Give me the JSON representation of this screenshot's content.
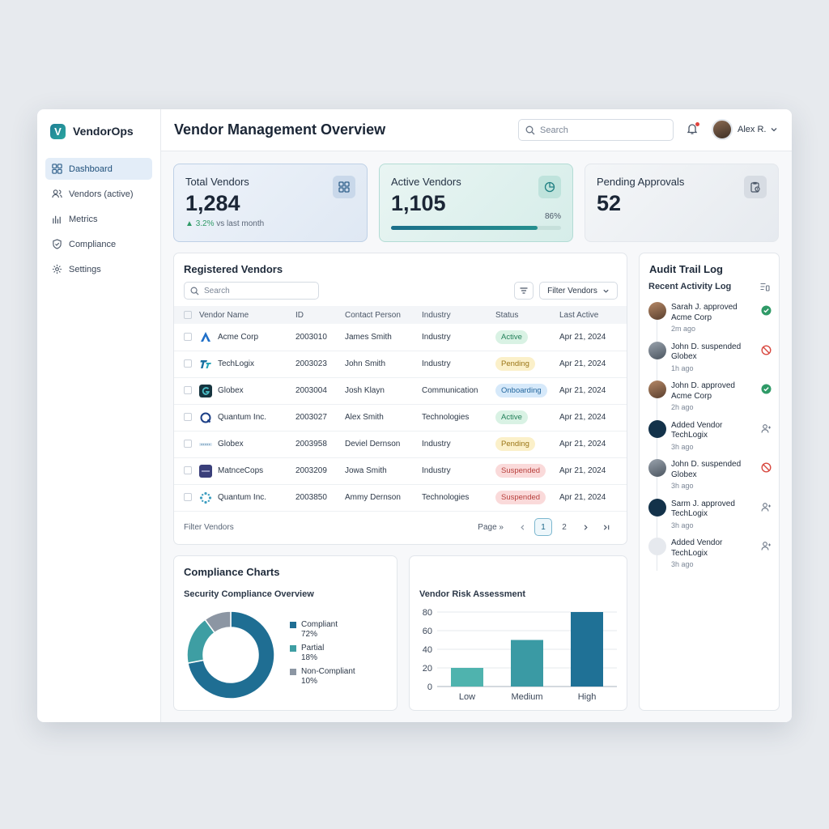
{
  "app": {
    "name": "VendorOps"
  },
  "sidebar": {
    "items": [
      {
        "label": "Dashboard",
        "icon": "dashboard-icon",
        "active": true
      },
      {
        "label": "Vendors (active)",
        "icon": "users-icon",
        "active": false
      },
      {
        "label": "Metrics",
        "icon": "bar-chart-icon",
        "active": false
      },
      {
        "label": "Compliance",
        "icon": "shield-icon",
        "active": false
      },
      {
        "label": "Settings",
        "icon": "gear-icon",
        "active": false
      }
    ]
  },
  "header": {
    "title": "Vendor Management Overview",
    "search_placeholder": "Search",
    "user_name": "Alex R."
  },
  "stats": {
    "total": {
      "label": "Total Vendors",
      "value": "1,284",
      "trend_value": "3.2%",
      "trend_text": "vs last month"
    },
    "active": {
      "label": "Active Vendors",
      "value": "1,105",
      "progress_label": "86%",
      "progress": 0.86
    },
    "pending": {
      "label": "Pending Approvals",
      "value": "52"
    }
  },
  "vendors": {
    "title": "Registered Vendors",
    "search_placeholder": "Search",
    "filter_label": "Filter Vendors",
    "columns": [
      "Vendor Name",
      "ID",
      "Contact Person",
      "Industry",
      "Status",
      "Last Active"
    ],
    "rows": [
      {
        "name": "Acme Corp",
        "id": "2003010",
        "contact": "James Smith",
        "industry": "Industry",
        "status": "Active",
        "last": "Apr 21, 2024"
      },
      {
        "name": "TechLogix",
        "id": "2003023",
        "contact": "John Smith",
        "industry": "Industry",
        "status": "Pending",
        "last": "Apr 21, 2024"
      },
      {
        "name": "Globex",
        "id": "2003004",
        "contact": "Josh Klayn",
        "industry": "Communication",
        "status": "Onboarding",
        "last": "Apr 21, 2024"
      },
      {
        "name": "Quantum Inc.",
        "id": "2003027",
        "contact": "Alex Smith",
        "industry": "Technologies",
        "status": "Active",
        "last": "Apr 21, 2024"
      },
      {
        "name": "Globex",
        "id": "2003958",
        "contact": "Deviel Dernson",
        "industry": "Industry",
        "status": "Pending",
        "last": "Apr 21, 2024"
      },
      {
        "name": "MatnceCops",
        "id": "2003209",
        "contact": "Jowa Smith",
        "industry": "Industry",
        "status": "Suspended",
        "last": "Apr 21, 2024"
      },
      {
        "name": "Quantum Inc.",
        "id": "2003850",
        "contact": "Ammy Dernson",
        "industry": "Technologies",
        "status": "Suspended",
        "last": "Apr 21, 2024"
      }
    ],
    "footer_label": "Filter Vendors",
    "pager": {
      "label": "Page",
      "current": "1",
      "next_page": "2"
    }
  },
  "audit": {
    "title": "Audit Trail Log",
    "subtitle": "Recent Activity Log",
    "items": [
      {
        "text": "Sarah J. approved Acme Corp",
        "time": "2m ago",
        "status": "approved"
      },
      {
        "text": "John D. suspended Globex",
        "time": "1h ago",
        "status": "suspended"
      },
      {
        "text": "John D. approved Acme Corp",
        "time": "2h ago",
        "status": "approved"
      },
      {
        "text": "Added Vendor TechLogix",
        "time": "3h ago",
        "status": "added"
      },
      {
        "text": "John D. suspended Globex",
        "time": "3h ago",
        "status": "suspended"
      },
      {
        "text": "Sarm J. approved TechLogix",
        "time": "3h ago",
        "status": "added"
      },
      {
        "text": "Added Vendor TechLogix",
        "time": "3h ago",
        "status": "added"
      }
    ]
  },
  "compliance": {
    "title": "Compliance Charts",
    "subtitle": "Security Compliance Overview"
  },
  "risk": {
    "title": "Vendor Risk Assessment"
  },
  "chart_data": [
    {
      "type": "pie",
      "title": "Security Compliance Overview",
      "categories": [
        "Compliant",
        "Partial",
        "Non-Compliant"
      ],
      "values": [
        72,
        18,
        10
      ],
      "value_labels": [
        "72%",
        "18%",
        "10%"
      ],
      "colors": [
        "#1f6e93",
        "#3e9ea3",
        "#8c96a3"
      ],
      "legend": "right"
    },
    {
      "type": "bar",
      "title": "Vendor Risk Assessment",
      "categories": [
        "Low",
        "Medium",
        "High"
      ],
      "values": [
        20,
        50,
        80
      ],
      "colors": [
        "#4fb3ae",
        "#3a9aa4",
        "#1f7196"
      ],
      "ylim": [
        0,
        80
      ],
      "yticks": [
        0,
        20,
        40,
        60,
        80
      ],
      "grid": true
    }
  ],
  "colors": {
    "accent": "#1f6e93",
    "active": "#23805a",
    "pending": "#9a7516",
    "onboarding": "#24679e",
    "suspended": "#b8403d"
  }
}
